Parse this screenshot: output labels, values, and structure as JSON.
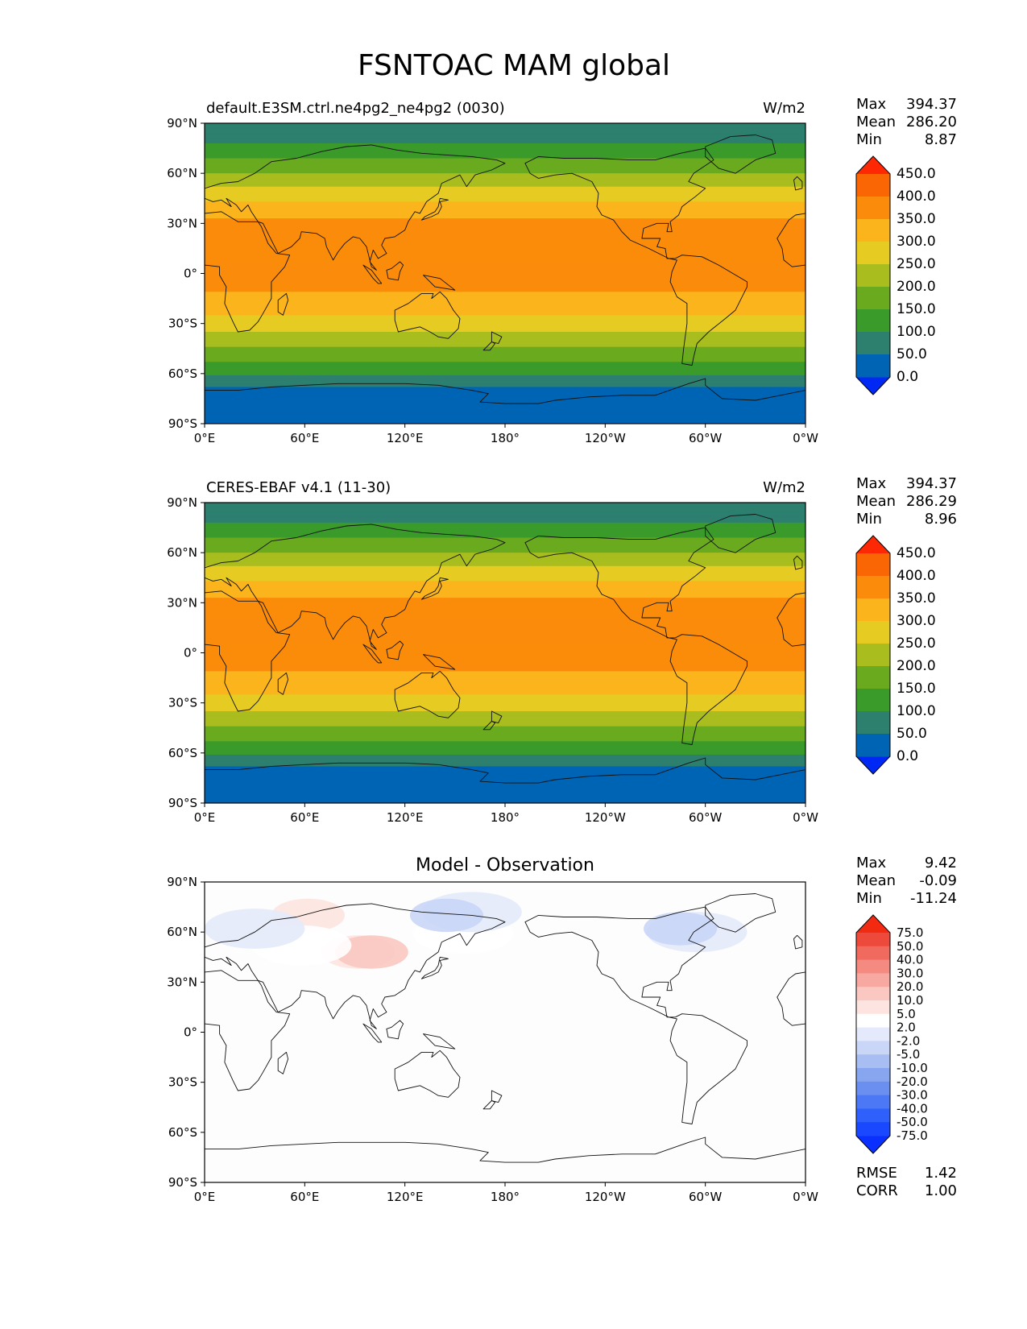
{
  "figure": {
    "title": "FSNTOAC MAM global"
  },
  "panels": [
    {
      "left_title": "default.E3SM.ctrl.ne4pg2_ne4pg2 (0030)",
      "right_title": "W/m2",
      "stats": {
        "max_label": "Max",
        "max": "394.37",
        "mean_label": "Mean",
        "mean": "286.20",
        "min_label": "Min",
        "min": "8.87"
      }
    },
    {
      "left_title": "CERES-EBAF v4.1 (11-30)",
      "right_title": "W/m2",
      "stats": {
        "max_label": "Max",
        "max": "394.37",
        "mean_label": "Mean",
        "mean": "286.29",
        "min_label": "Min",
        "min": "8.96"
      }
    },
    {
      "center_title": "Model - Observation",
      "stats": {
        "max_label": "Max",
        "max": "9.42",
        "mean_label": "Mean",
        "mean": "-0.09",
        "min_label": "Min",
        "min": "-11.24"
      },
      "metrics": {
        "rmse_label": "RMSE",
        "rmse": "1.42",
        "corr_label": "CORR",
        "corr": "1.00"
      }
    }
  ],
  "axes": {
    "x_ticks": [
      "0°E",
      "60°E",
      "120°E",
      "180°",
      "120°W",
      "60°W",
      "0°W"
    ],
    "y_ticks": [
      "90°N",
      "60°N",
      "30°N",
      "0°",
      "30°S",
      "60°S",
      "90°S"
    ],
    "xlim": [
      0,
      360
    ],
    "ylim": [
      -90,
      90
    ]
  },
  "colorbar_main": {
    "levels": [
      "0.0",
      "50.0",
      "100.0",
      "150.0",
      "200.0",
      "250.0",
      "300.0",
      "350.0",
      "400.0",
      "450.0"
    ],
    "colors": [
      "#0028f5",
      "#0064b4",
      "#2d7f6e",
      "#3a9a2a",
      "#6aaa1f",
      "#a9bd1e",
      "#e6cc22",
      "#fbb41c",
      "#fb8c0b",
      "#fb6605",
      "#fe2805"
    ]
  },
  "colorbar_diff": {
    "levels": [
      "-75.0",
      "-50.0",
      "-40.0",
      "-30.0",
      "-20.0",
      "-10.0",
      "-5.0",
      "-2.0",
      "2.0",
      "5.0",
      "10.0",
      "20.0",
      "30.0",
      "40.0",
      "50.0",
      "75.0"
    ],
    "colors": [
      "#0a30ff",
      "#1a48ff",
      "#3060fb",
      "#4c78f5",
      "#6a8ff0",
      "#88a6ef",
      "#a8bef2",
      "#c9d6f7",
      "#e4eafb",
      "#ffffff",
      "#fde4e0",
      "#fac8c0",
      "#f7a8a0",
      "#f48a80",
      "#f16a5e",
      "#ee4a3c",
      "#f22a12"
    ]
  },
  "chart_data": [
    {
      "type": "heatmap",
      "title": "default.E3SM.ctrl.ne4pg2_ne4pg2 (0030)",
      "units": "W/m2",
      "x": "longitude",
      "y": "latitude",
      "zonal_mean_profile": [
        {
          "lat": 90,
          "value": 60
        },
        {
          "lat": 80,
          "value": 90
        },
        {
          "lat": 72,
          "value": 130
        },
        {
          "lat": 65,
          "value": 170
        },
        {
          "lat": 58,
          "value": 215
        },
        {
          "lat": 50,
          "value": 260
        },
        {
          "lat": 40,
          "value": 320
        },
        {
          "lat": 30,
          "value": 360
        },
        {
          "lat": 0,
          "value": 380
        },
        {
          "lat": -15,
          "value": 340
        },
        {
          "lat": -30,
          "value": 280
        },
        {
          "lat": -40,
          "value": 220
        },
        {
          "lat": -50,
          "value": 165
        },
        {
          "lat": -60,
          "value": 110
        },
        {
          "lat": -70,
          "value": 30
        },
        {
          "lat": -90,
          "value": 10
        }
      ],
      "stats": {
        "max": 394.37,
        "mean": 286.2,
        "min": 8.87
      }
    },
    {
      "type": "heatmap",
      "title": "CERES-EBAF v4.1 (11-30)",
      "units": "W/m2",
      "x": "longitude",
      "y": "latitude",
      "zonal_mean_profile": [
        {
          "lat": 90,
          "value": 60
        },
        {
          "lat": 80,
          "value": 90
        },
        {
          "lat": 72,
          "value": 130
        },
        {
          "lat": 65,
          "value": 170
        },
        {
          "lat": 58,
          "value": 215
        },
        {
          "lat": 50,
          "value": 260
        },
        {
          "lat": 40,
          "value": 320
        },
        {
          "lat": 30,
          "value": 360
        },
        {
          "lat": 0,
          "value": 380
        },
        {
          "lat": -15,
          "value": 340
        },
        {
          "lat": -30,
          "value": 280
        },
        {
          "lat": -40,
          "value": 220
        },
        {
          "lat": -50,
          "value": 165
        },
        {
          "lat": -60,
          "value": 110
        },
        {
          "lat": -70,
          "value": 30
        },
        {
          "lat": -90,
          "value": 10
        }
      ],
      "stats": {
        "max": 394.37,
        "mean": 286.29,
        "min": 8.96
      }
    },
    {
      "type": "heatmap",
      "title": "Model - Observation",
      "x": "longitude",
      "y": "latitude",
      "anomalies": [
        {
          "lon": 62,
          "lat": 70,
          "value": 5
        },
        {
          "lon": 92,
          "lat": 48,
          "value": 5
        },
        {
          "lon": 100,
          "lat": 48,
          "value": 10
        },
        {
          "lon": 58,
          "lat": 52,
          "value": 2
        },
        {
          "lon": 30,
          "lat": 62,
          "value": -2
        },
        {
          "lon": 155,
          "lat": 59,
          "value": 2
        },
        {
          "lon": 160,
          "lat": 72,
          "value": -2
        },
        {
          "lon": 145,
          "lat": 70,
          "value": -5
        },
        {
          "lon": 295,
          "lat": 60,
          "value": -2
        },
        {
          "lon": 285,
          "lat": 62,
          "value": -5
        }
      ],
      "stats": {
        "max": 9.42,
        "mean": -0.09,
        "min": -11.24,
        "rmse": 1.42,
        "corr": 1.0
      }
    }
  ]
}
